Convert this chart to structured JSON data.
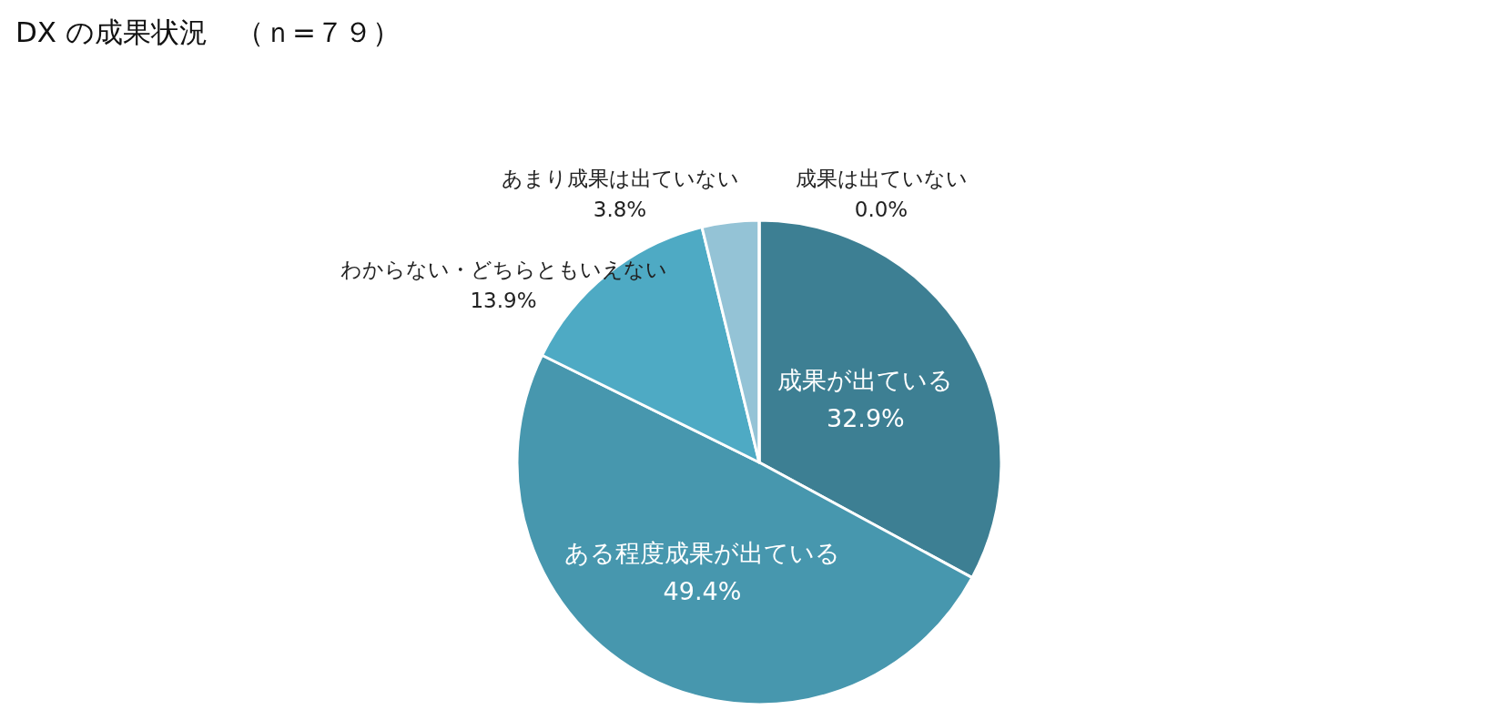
{
  "chart_data": {
    "type": "pie",
    "title": "DX の成果状況　（ｎ=７９）",
    "categories": [
      "成果が出ている",
      "ある程度成果が出ている",
      "わからない・どちらともいえない",
      "あまり成果は出ていない",
      "成果は出ていない"
    ],
    "values": [
      32.9,
      49.4,
      13.9,
      3.8,
      0.0
    ],
    "value_labels": [
      "32.9%",
      "49.4%",
      "13.9%",
      "3.8%",
      "0.0%"
    ],
    "colors": [
      "#3d7f93",
      "#4797ae",
      "#4eaac4",
      "#94c3d6",
      "#b9dbe6"
    ],
    "legend": false
  }
}
